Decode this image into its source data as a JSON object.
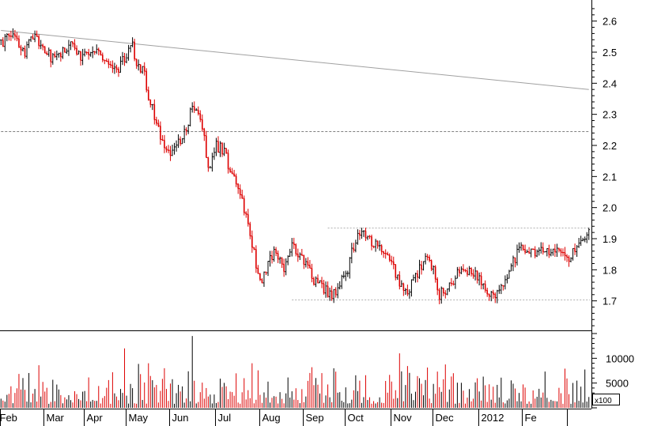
{
  "chart_data": [
    {
      "type": "ohlc",
      "ylim": [
        1.6,
        2.65
      ],
      "ticks": [
        "2.6",
        "2.5",
        "2.4",
        "2.3",
        "2.2",
        "2.1",
        "2.0",
        "1.9",
        "1.8",
        "1.7"
      ],
      "x_labels": [
        "Feb",
        "Mar",
        "Apr",
        "May",
        "Jun",
        "Jul",
        "Aug",
        "Sep",
        "Oct",
        "Nov",
        "Dec",
        "2012",
        "Fe"
      ],
      "up_color": "#000000",
      "down_color": "#dd0000",
      "price_path": [
        [
          0,
          2.53
        ],
        [
          6,
          2.56
        ],
        [
          12,
          2.5
        ],
        [
          16,
          2.55
        ],
        [
          22,
          2.5
        ],
        [
          26,
          2.48
        ],
        [
          30,
          2.5
        ],
        [
          36,
          2.52
        ],
        [
          40,
          2.49
        ],
        [
          45,
          2.51
        ],
        [
          50,
          2.5
        ],
        [
          54,
          2.46
        ],
        [
          58,
          2.44
        ],
        [
          62,
          2.48
        ],
        [
          66,
          2.52
        ],
        [
          68,
          2.45
        ],
        [
          72,
          2.44
        ],
        [
          74,
          2.35
        ],
        [
          78,
          2.28
        ],
        [
          80,
          2.22
        ],
        [
          84,
          2.18
        ],
        [
          88,
          2.2
        ],
        [
          92,
          2.24
        ],
        [
          96,
          2.32
        ],
        [
          100,
          2.28
        ],
        [
          102,
          2.22
        ],
        [
          104,
          2.12
        ],
        [
          108,
          2.2
        ],
        [
          112,
          2.18
        ],
        [
          116,
          2.1
        ],
        [
          120,
          2.05
        ],
        [
          124,
          1.95
        ],
        [
          128,
          1.82
        ],
        [
          130,
          1.76
        ],
        [
          134,
          1.82
        ],
        [
          138,
          1.86
        ],
        [
          142,
          1.8
        ],
        [
          146,
          1.88
        ],
        [
          150,
          1.84
        ],
        [
          154,
          1.8
        ],
        [
          158,
          1.76
        ],
        [
          162,
          1.74
        ],
        [
          166,
          1.72
        ],
        [
          170,
          1.75
        ],
        [
          174,
          1.8
        ],
        [
          176,
          1.86
        ],
        [
          180,
          1.92
        ],
        [
          184,
          1.9
        ],
        [
          188,
          1.88
        ],
        [
          192,
          1.85
        ],
        [
          196,
          1.82
        ],
        [
          200,
          1.76
        ],
        [
          204,
          1.72
        ],
        [
          206,
          1.76
        ],
        [
          210,
          1.8
        ],
        [
          214,
          1.84
        ],
        [
          218,
          1.78
        ],
        [
          220,
          1.72
        ],
        [
          224,
          1.74
        ],
        [
          228,
          1.78
        ],
        [
          232,
          1.8
        ],
        [
          236,
          1.8
        ],
        [
          240,
          1.77
        ],
        [
          244,
          1.73
        ],
        [
          248,
          1.72
        ],
        [
          252,
          1.76
        ],
        [
          256,
          1.82
        ],
        [
          260,
          1.86
        ],
        [
          264,
          1.87
        ],
        [
          268,
          1.86
        ],
        [
          272,
          1.86
        ],
        [
          276,
          1.85
        ],
        [
          280,
          1.87
        ],
        [
          284,
          1.83
        ],
        [
          288,
          1.86
        ],
        [
          292,
          1.9
        ],
        [
          294,
          1.92
        ]
      ],
      "volume_ticks": [
        "10000",
        "5000"
      ],
      "volume_unit": "x100",
      "volume_scale_max": 15000,
      "volume_overlay_indices": [
        62,
        74,
        82,
        96,
        126,
        156,
        200
      ],
      "volume_overlay_values": [
        12000,
        9000,
        8000,
        14500,
        9000,
        8200,
        11000
      ],
      "trendline": {
        "from": [
          0,
          2.57
        ],
        "to": [
          295,
          2.38
        ]
      },
      "ref_lines": [
        {
          "value": 2.245,
          "x_from": 0,
          "style": "dashed"
        },
        {
          "value": 1.935,
          "x_from": 164,
          "style": "dotted"
        },
        {
          "value": 1.705,
          "x_from": 146,
          "style": "dotted"
        }
      ]
    }
  ]
}
